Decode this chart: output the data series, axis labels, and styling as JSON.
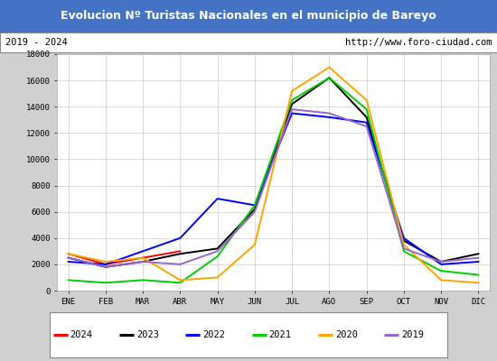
{
  "title": "Evolucion Nº Turistas Nacionales en el municipio de Bareyo",
  "subtitle_left": "2019 - 2024",
  "subtitle_right": "http://www.foro-ciudad.com",
  "months": [
    "ENE",
    "FEB",
    "MAR",
    "ABR",
    "MAY",
    "JUN",
    "JUL",
    "AGO",
    "SEP",
    "OCT",
    "NOV",
    "DIC"
  ],
  "title_bg": "#4472c4",
  "title_color": "white",
  "series": {
    "2024": {
      "color": "#ff0000",
      "data": [
        2800,
        2000,
        2500,
        3000,
        null,
        null,
        null,
        null,
        null,
        null,
        null,
        null
      ]
    },
    "2023": {
      "color": "#000000",
      "data": [
        2500,
        1800,
        2200,
        2800,
        3200,
        6200,
        14200,
        16200,
        13200,
        3800,
        2200,
        2800
      ]
    },
    "2022": {
      "color": "#0000ff",
      "data": [
        2200,
        2000,
        3000,
        4000,
        7000,
        6500,
        13500,
        13200,
        12800,
        4000,
        2000,
        2200
      ]
    },
    "2021": {
      "color": "#00cc00",
      "data": [
        800,
        600,
        800,
        600,
        2600,
        6500,
        14500,
        16200,
        13800,
        3000,
        1500,
        1200
      ]
    },
    "2020": {
      "color": "#ffa500",
      "data": [
        2800,
        2200,
        2500,
        800,
        1000,
        3500,
        15200,
        17000,
        14500,
        3500,
        800,
        600
      ]
    },
    "2019": {
      "color": "#9966cc",
      "data": [
        2500,
        1800,
        2200,
        2000,
        3000,
        6000,
        13800,
        13500,
        12500,
        3200,
        2200,
        2500
      ]
    }
  },
  "ylim": [
    0,
    18000
  ],
  "yticks": [
    0,
    2000,
    4000,
    6000,
    8000,
    10000,
    12000,
    14000,
    16000,
    18000
  ],
  "legend_order": [
    "2024",
    "2023",
    "2022",
    "2021",
    "2020",
    "2019"
  ],
  "fig_width": 5.5,
  "fig_height": 4.0,
  "dpi": 100
}
